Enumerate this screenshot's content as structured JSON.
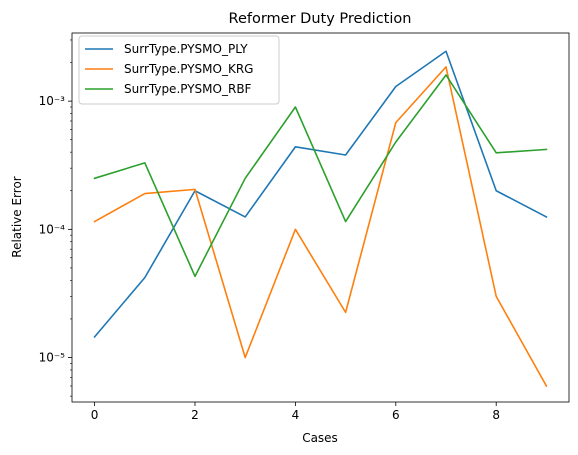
{
  "chart_data": {
    "type": "line",
    "title": "Reformer Duty Prediction",
    "xlabel": "Cases",
    "ylabel": "Relative Error",
    "yscale": "log",
    "xlim": [
      -0.45,
      9.45
    ],
    "ylim": [
      4.5e-06,
      0.0034
    ],
    "x": [
      0,
      1,
      2,
      3,
      4,
      5,
      6,
      7,
      8,
      9
    ],
    "xticks": [
      0,
      2,
      4,
      6,
      8
    ],
    "yticks": [
      {
        "value": 1e-05,
        "label": "10⁻⁵"
      },
      {
        "value": 0.0001,
        "label": "10⁻⁴"
      },
      {
        "value": 0.001,
        "label": "10⁻³"
      }
    ],
    "legend_position": "top-left",
    "grid": false,
    "series": [
      {
        "name": "SurrType.PYSMO_PLY",
        "color": "#1f77b4",
        "values": [
          1.45e-05,
          4.2e-05,
          0.0002,
          0.000125,
          0.00044,
          0.00038,
          0.0013,
          0.00245,
          0.0002,
          0.000125
        ]
      },
      {
        "name": "SurrType.PYSMO_KRG",
        "color": "#ff7f0e",
        "values": [
          0.000115,
          0.00019,
          0.000205,
          1e-05,
          0.0001,
          2.25e-05,
          0.00068,
          0.00185,
          3e-05,
          6e-06
        ]
      },
      {
        "name": "SurrType.PYSMO_RBF",
        "color": "#2ca02c",
        "values": [
          0.00025,
          0.00033,
          4.3e-05,
          0.00025,
          0.0009,
          0.000115,
          0.00048,
          0.0016,
          0.000395,
          0.00042
        ]
      }
    ]
  }
}
